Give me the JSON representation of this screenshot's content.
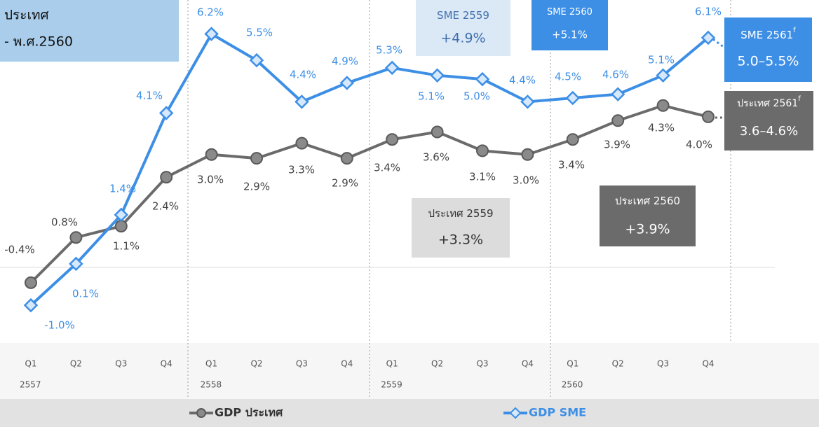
{
  "chart_data": {
    "type": "line",
    "note_lines": [
      "ประเทศ",
      "- พ.ศ.2560"
    ],
    "categories": [
      "Q1",
      "Q2",
      "Q3",
      "Q4",
      "Q1",
      "Q2",
      "Q3",
      "Q4",
      "Q1",
      "Q2",
      "Q3",
      "Q4",
      "Q1",
      "Q2",
      "Q3",
      "Q4"
    ],
    "years": [
      "2557",
      "2558",
      "2559",
      "2560"
    ],
    "ylim": [
      -2,
      7.1
    ],
    "series": [
      {
        "name": "GDP ประเทศ",
        "color": "#6b6b6b",
        "values": [
          -0.4,
          0.8,
          1.1,
          2.4,
          3.0,
          2.9,
          3.3,
          2.9,
          3.4,
          3.6,
          3.1,
          3.0,
          3.4,
          3.9,
          4.3,
          4.0
        ],
        "value_labels": [
          "-0.4%",
          "0.8%",
          "1.1%",
          "2.4%",
          "3.0%",
          "2.9%",
          "3.3%",
          "2.9%",
          "3.4%",
          "3.6%",
          "3.1%",
          "3.0%",
          "3.4%",
          "3.9%",
          "4.3%",
          "4.0%"
        ]
      },
      {
        "name": "GDP SME",
        "color": "#3d8fe6",
        "values": [
          -1.0,
          0.1,
          1.4,
          4.1,
          6.2,
          5.5,
          4.4,
          4.9,
          5.3,
          5.1,
          5.0,
          4.4,
          4.5,
          4.6,
          5.1,
          6.1
        ],
        "value_labels": [
          "-1.0%",
          "0.1%",
          "1.4%",
          "4.1%",
          "6.2%",
          "5.5%",
          "4.4%",
          "4.9%",
          "5.3%",
          "5.1%",
          "5.0%",
          "4.4%",
          "4.5%",
          "4.6%",
          "5.1%",
          "6.1%"
        ]
      }
    ],
    "annotations": [
      {
        "label": "SME 2559",
        "text": "+4.9%"
      },
      {
        "label": "SME 2560",
        "text": "+5.1%"
      },
      {
        "label": "SME 2561",
        "sup": "f",
        "text": "5.0–5.5%"
      },
      {
        "label": "ประเทศ 2561",
        "sup": "f",
        "text": "3.6–4.6%"
      },
      {
        "label": "ประเทศ 2559",
        "text": "+3.3%"
      },
      {
        "label": "ประเทศ 2560",
        "text": "+3.9%"
      }
    ]
  }
}
